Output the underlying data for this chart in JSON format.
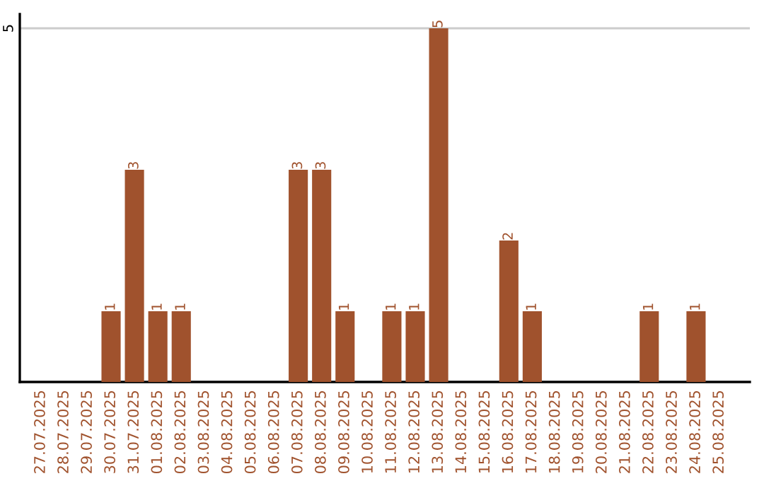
{
  "chart_data": {
    "type": "bar",
    "categories": [
      "27.07.2025",
      "28.07.2025",
      "29.07.2025",
      "30.07.2025",
      "31.07.2025",
      "01.08.2025",
      "02.08.2025",
      "03.08.2025",
      "04.08.2025",
      "05.08.2025",
      "06.08.2025",
      "07.08.2025",
      "08.08.2025",
      "09.08.2025",
      "10.08.2025",
      "11.08.2025",
      "12.08.2025",
      "13.08.2025",
      "14.08.2025",
      "15.08.2025",
      "16.08.2025",
      "17.08.2025",
      "18.08.2025",
      "19.08.2025",
      "20.08.2025",
      "21.08.2025",
      "22.08.2025",
      "23.08.2025",
      "24.08.2025",
      "25.08.2025"
    ],
    "values": [
      0,
      0,
      0,
      1,
      3,
      1,
      1,
      0,
      0,
      0,
      0,
      3,
      3,
      1,
      0,
      1,
      1,
      5,
      0,
      0,
      2,
      1,
      0,
      0,
      0,
      0,
      1,
      0,
      1,
      0
    ],
    "value_labels": [
      null,
      null,
      null,
      "1",
      "3",
      "1",
      "1",
      null,
      null,
      null,
      null,
      "3",
      "3",
      "1",
      null,
      "1",
      "1",
      "5",
      null,
      null,
      "2",
      "1",
      null,
      null,
      null,
      null,
      "1",
      null,
      "1",
      null
    ],
    "color": "#a0522d",
    "ylim": [
      0,
      5.2
    ],
    "yticks": [
      5
    ],
    "grid": "y"
  }
}
